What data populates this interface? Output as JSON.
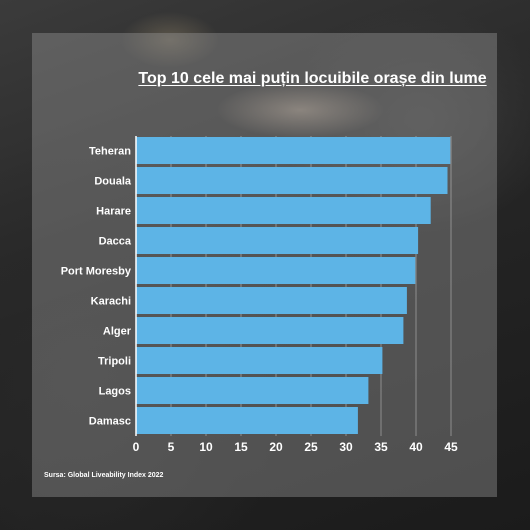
{
  "chart_data": {
    "type": "bar",
    "orientation": "horizontal",
    "title": "Top 10 cele mai puțin locuibile orașe din lume",
    "categories": [
      "Teheran",
      "Douala",
      "Harare",
      "Dacca",
      "Port Moresby",
      "Karachi",
      "Alger",
      "Tripoli",
      "Lagos",
      "Damasc"
    ],
    "values": [
      44.9,
      44.5,
      42.1,
      40.3,
      39.9,
      38.7,
      38.2,
      35.2,
      33.2,
      31.7
    ],
    "xlim": [
      0,
      45
    ],
    "ticks": [
      0,
      5,
      10,
      15,
      20,
      25,
      30,
      35,
      40,
      45
    ],
    "grid": true,
    "bar_color": "#5db4e6",
    "xlabel": "",
    "ylabel": ""
  },
  "source": "Sursa: Global Liveability Index 2022"
}
